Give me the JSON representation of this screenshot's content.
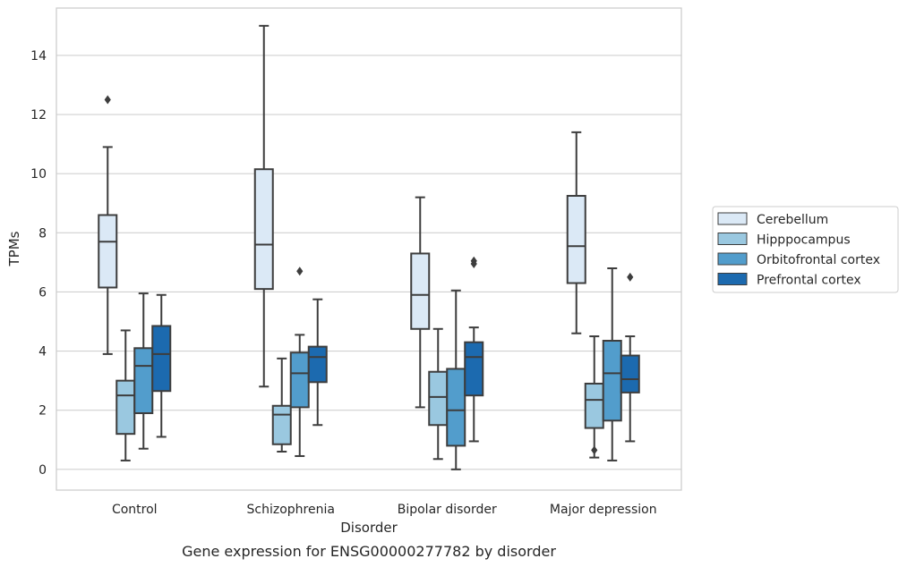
{
  "chart_data": {
    "type": "box",
    "caption": "Gene expression for ENSG00000277782 by disorder",
    "xlabel": "Disorder",
    "ylabel": "TPMs",
    "ylim": [
      -0.7,
      15.6
    ],
    "yticks": [
      0,
      2,
      4,
      6,
      8,
      10,
      12,
      14
    ],
    "grid": true,
    "legend_position": "right",
    "categories": [
      "Control",
      "Schizophrenia",
      "Bipolar disorder",
      "Major depression"
    ],
    "series": [
      {
        "name": "Cerebellum",
        "color": "#dbe9f6",
        "boxes": [
          {
            "whisker_low": 3.9,
            "q1": 6.15,
            "median": 7.7,
            "q3": 8.6,
            "whisker_high": 10.9,
            "outliers": [
              12.5
            ]
          },
          {
            "whisker_low": 2.8,
            "q1": 6.1,
            "median": 7.6,
            "q3": 10.15,
            "whisker_high": 15.0,
            "outliers": []
          },
          {
            "whisker_low": 2.1,
            "q1": 4.75,
            "median": 5.9,
            "q3": 7.3,
            "whisker_high": 9.2,
            "outliers": []
          },
          {
            "whisker_low": 4.6,
            "q1": 6.3,
            "median": 7.55,
            "q3": 9.25,
            "whisker_high": 11.4,
            "outliers": []
          }
        ]
      },
      {
        "name": "Hipppocampus",
        "color": "#9ac8e0",
        "boxes": [
          {
            "whisker_low": 0.3,
            "q1": 1.2,
            "median": 2.5,
            "q3": 3.0,
            "whisker_high": 4.7,
            "outliers": []
          },
          {
            "whisker_low": 0.6,
            "q1": 0.85,
            "median": 1.85,
            "q3": 2.15,
            "whisker_high": 3.75,
            "outliers": []
          },
          {
            "whisker_low": 0.35,
            "q1": 1.5,
            "median": 2.45,
            "q3": 3.3,
            "whisker_high": 4.75,
            "outliers": []
          },
          {
            "whisker_low": 0.4,
            "q1": 1.4,
            "median": 2.35,
            "q3": 2.9,
            "whisker_high": 4.5,
            "outliers": [
              0.65
            ]
          }
        ]
      },
      {
        "name": "Orbitofrontal cortex",
        "color": "#529dcc",
        "boxes": [
          {
            "whisker_low": 0.7,
            "q1": 1.9,
            "median": 3.5,
            "q3": 4.1,
            "whisker_high": 5.95,
            "outliers": []
          },
          {
            "whisker_low": 0.45,
            "q1": 2.1,
            "median": 3.25,
            "q3": 3.95,
            "whisker_high": 4.55,
            "outliers": [
              6.7
            ]
          },
          {
            "whisker_low": 0.0,
            "q1": 0.8,
            "median": 2.0,
            "q3": 3.4,
            "whisker_high": 6.05,
            "outliers": []
          },
          {
            "whisker_low": 0.3,
            "q1": 1.65,
            "median": 3.25,
            "q3": 4.35,
            "whisker_high": 6.8,
            "outliers": []
          }
        ]
      },
      {
        "name": "Prefrontal cortex",
        "color": "#1c6aaf",
        "boxes": [
          {
            "whisker_low": 1.1,
            "q1": 2.65,
            "median": 3.9,
            "q3": 4.85,
            "whisker_high": 5.9,
            "outliers": []
          },
          {
            "whisker_low": 1.5,
            "q1": 2.95,
            "median": 3.8,
            "q3": 4.15,
            "whisker_high": 5.75,
            "outliers": []
          },
          {
            "whisker_low": 0.95,
            "q1": 2.5,
            "median": 3.8,
            "q3": 4.3,
            "whisker_high": 4.8,
            "outliers": [
              6.95,
              7.05
            ]
          },
          {
            "whisker_low": 0.95,
            "q1": 2.6,
            "median": 3.05,
            "q3": 3.85,
            "whisker_high": 4.5,
            "outliers": [
              6.5
            ]
          }
        ]
      }
    ]
  }
}
